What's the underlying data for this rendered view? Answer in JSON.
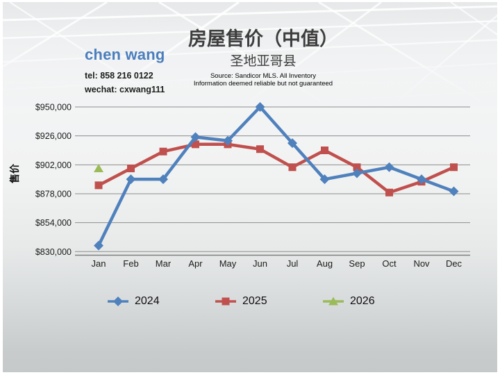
{
  "slide": {
    "title": "房屋售价（中值）",
    "subtitle": "圣地亚哥县",
    "source_line1": "Source: Sandicor MLS. All Inventory",
    "source_line2": "Information deemed reliable but not guaranteed"
  },
  "contact": {
    "name": "chen wang",
    "tel": "tel: 858 216 0122",
    "wechat": "wechat: cxwang111"
  },
  "chart_data": {
    "type": "line",
    "title": "房屋售价（中值）",
    "subtitle": "圣地亚哥县",
    "xlabel": "",
    "ylabel": "售价",
    "categories": [
      "Jan",
      "Feb",
      "Mar",
      "Apr",
      "May",
      "Jun",
      "Jul",
      "Aug",
      "Sep",
      "Oct",
      "Nov",
      "Dec"
    ],
    "series": [
      {
        "name": "2024",
        "color": "#4F81BD",
        "marker": "diamond",
        "values": [
          835000,
          890000,
          890000,
          925000,
          922000,
          950000,
          920000,
          890000,
          895000,
          900000,
          890000,
          880000
        ]
      },
      {
        "name": "2025",
        "color": "#C0504D",
        "marker": "square",
        "values": [
          885000,
          899000,
          913000,
          919000,
          919000,
          915000,
          900000,
          914000,
          900000,
          879000,
          888000,
          900000
        ]
      },
      {
        "name": "2026",
        "color": "#9BBB59",
        "marker": "triangle",
        "values": [
          899000,
          null,
          null,
          null,
          null,
          null,
          null,
          null,
          null,
          null,
          null,
          null
        ]
      }
    ],
    "ylim": [
      830000,
      950000
    ],
    "yticks": [
      830000,
      854000,
      878000,
      902000,
      926000,
      950000
    ],
    "ytick_labels": [
      "$830,000",
      "$854,000",
      "$878,000",
      "$902,000",
      "$926,000",
      "$950,000"
    ],
    "grid": true,
    "legend_position": "bottom",
    "legend": [
      "2024",
      "2025",
      "2026"
    ],
    "colors": {
      "grid_line": "#8c8c8c",
      "axis_line": "#7f7f7f",
      "tick_text": "#1a1a1a"
    }
  }
}
